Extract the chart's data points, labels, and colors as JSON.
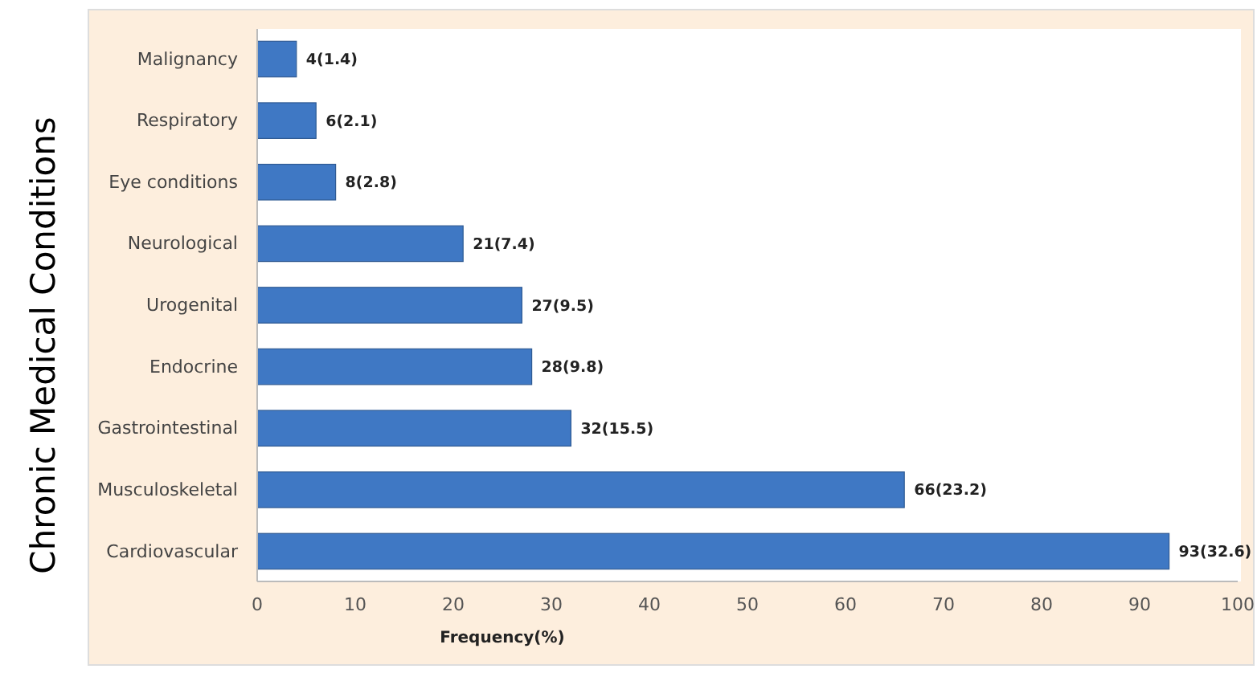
{
  "chart_data": {
    "type": "bar",
    "orientation": "horizontal",
    "xlabel": "Frequency(%)",
    "ylabel": "Chronic Medical Conditions",
    "categories": [
      "Malignancy",
      "Respiratory",
      "Eye conditions",
      "Neurological",
      "Urogenital",
      "Endocrine",
      "Gastrointestinal",
      "Musculoskeletal",
      "Cardiovascular"
    ],
    "values": [
      4,
      6,
      8,
      21,
      27,
      28,
      32,
      66,
      93
    ],
    "value_labels": [
      "4(1.4)",
      "6(2.1)",
      "8(2.8)",
      "21(7.4)",
      "27(9.5)",
      "28(9.8)",
      "32(15.5)",
      "66(23.2)",
      "93(32.6)"
    ],
    "color": "#3f78c4",
    "xlim": [
      0,
      100
    ],
    "xticks": [
      0,
      10,
      20,
      30,
      40,
      50,
      60,
      70,
      80,
      90,
      100
    ],
    "grid": false
  }
}
